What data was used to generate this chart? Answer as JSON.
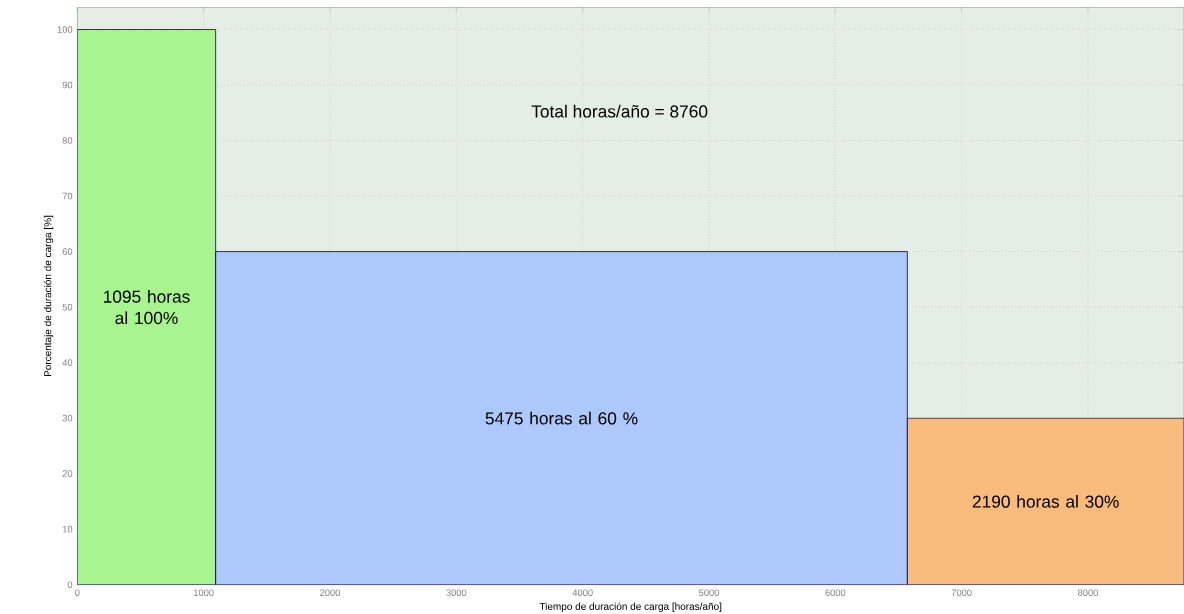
{
  "chart_data": {
    "type": "histogram",
    "xlabel": "Tiempo de duración de carga [horas/año]",
    "ylabel": "Porcentaje de duración de carga [%]",
    "bins": [
      0,
      1095,
      6570,
      8760
    ],
    "values": [
      100,
      60,
      30
    ],
    "colors": [
      "#a8f590",
      "#adc8fa",
      "#f9bb7c"
    ],
    "xlim": [
      0,
      8760
    ],
    "ylim": [
      0,
      104
    ],
    "xticks": [
      0,
      1000,
      2000,
      3000,
      4000,
      5000,
      6000,
      7000,
      8000
    ],
    "yticks": [
      0,
      10,
      20,
      30,
      40,
      50,
      60,
      70,
      80,
      90,
      100
    ],
    "grid": true,
    "annotations": [
      "Total horas/año = 8760",
      "1095 horas al 100%",
      "5475 horas al 60 %",
      "2190 horas al 30%"
    ]
  }
}
